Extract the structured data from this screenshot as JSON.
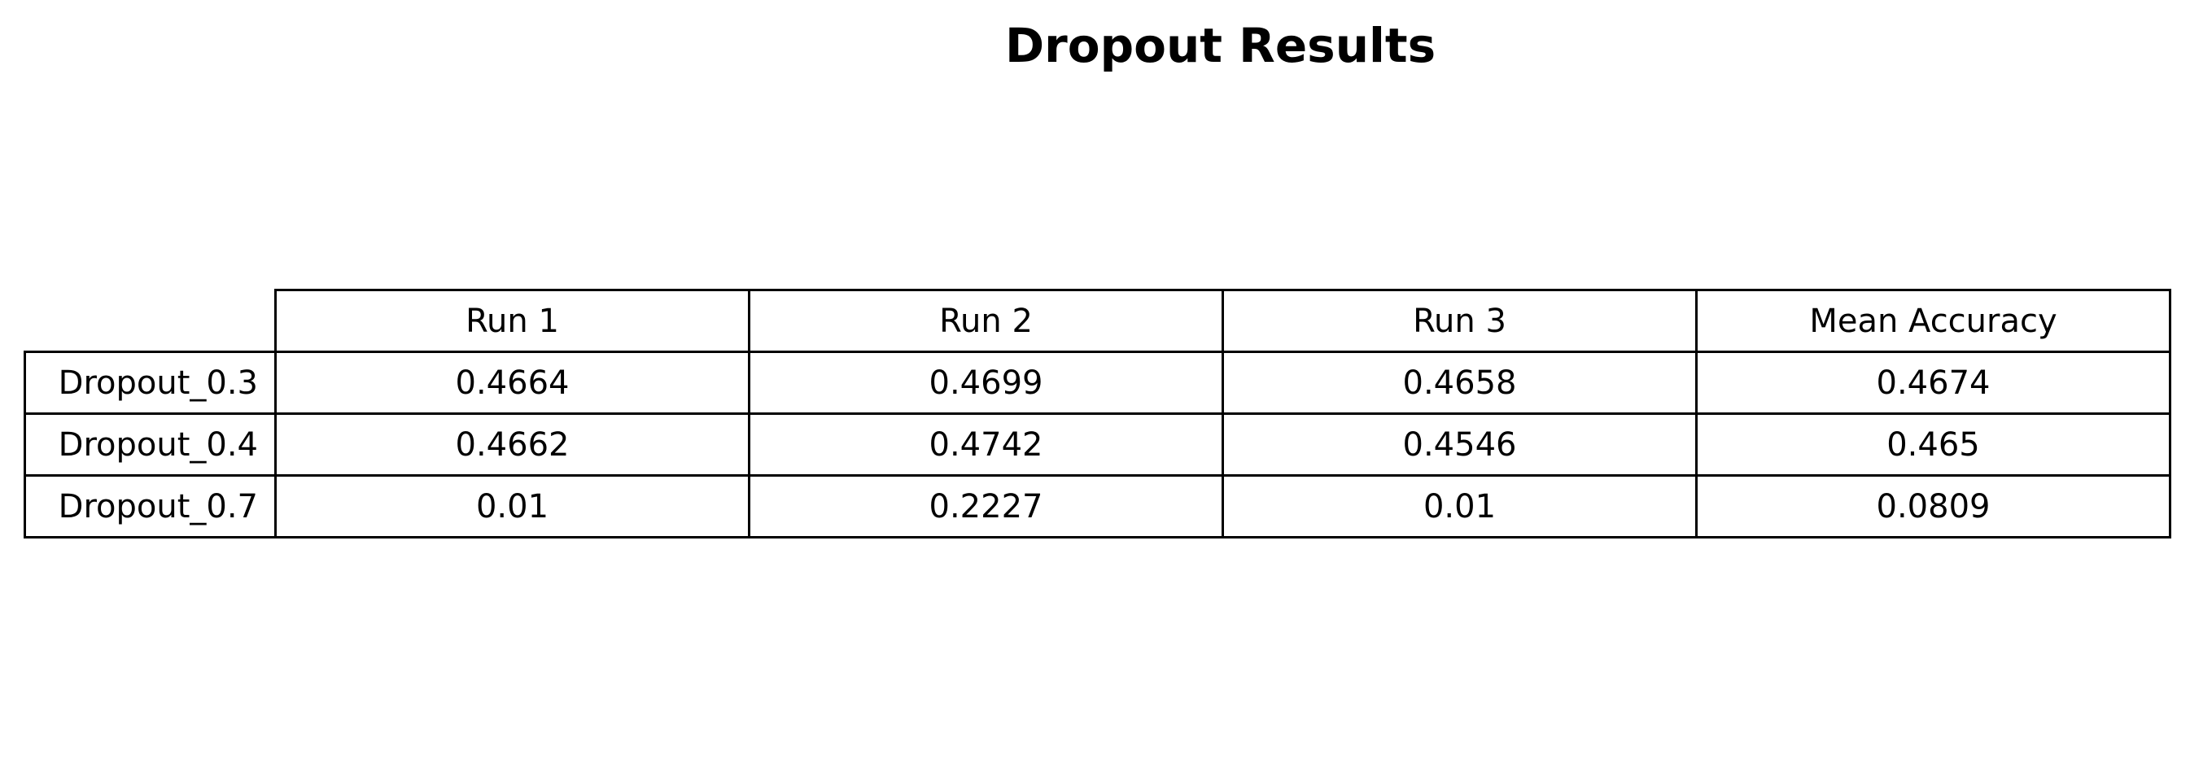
{
  "chart_data": {
    "type": "table",
    "title": "Dropout Results",
    "columns": [
      "Run 1",
      "Run 2",
      "Run 3",
      "Mean Accuracy"
    ],
    "rows": [
      {
        "label": "Dropout_0.3",
        "values": [
          "0.4664",
          "0.4699",
          "0.4658",
          "0.4674"
        ]
      },
      {
        "label": "Dropout_0.4",
        "values": [
          "0.4662",
          "0.4742",
          "0.4546",
          "0.465"
        ]
      },
      {
        "label": "Dropout_0.7",
        "values": [
          "0.01",
          "0.2227",
          "0.01",
          "0.0809"
        ]
      }
    ]
  }
}
